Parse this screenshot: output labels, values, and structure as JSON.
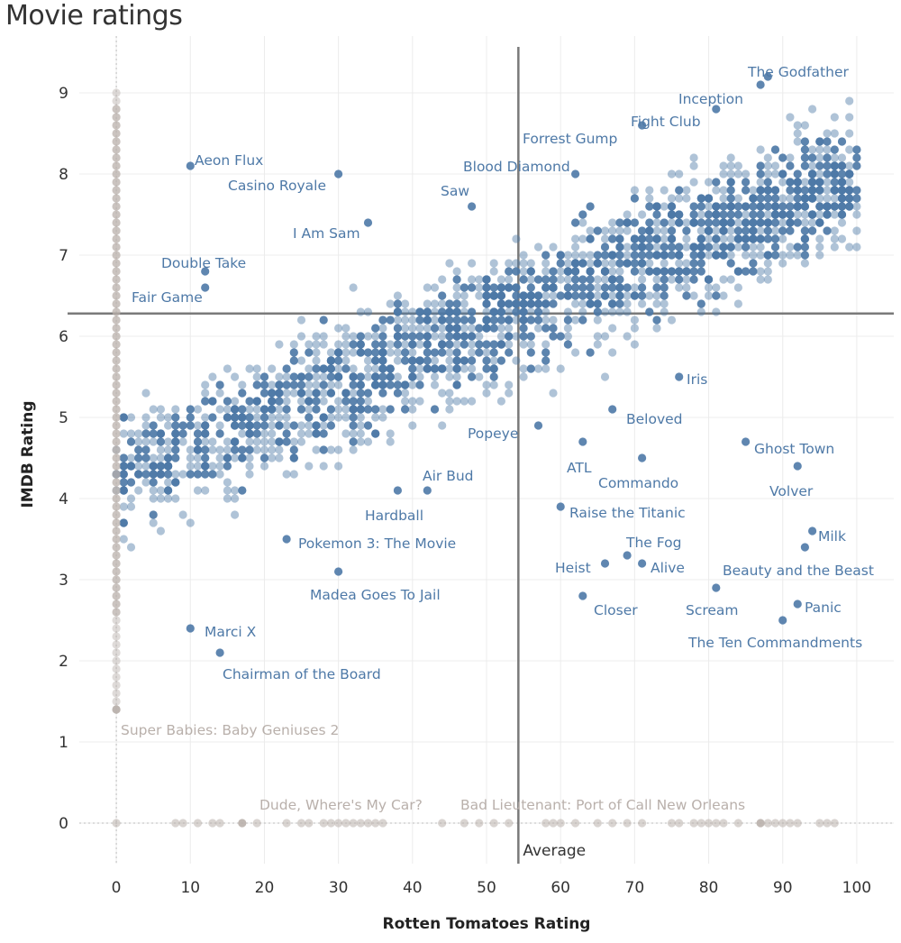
{
  "chart_data": {
    "type": "scatter",
    "title": "Movie ratings",
    "xlabel": "Rotten Tomatoes Rating",
    "ylabel": "IMDB Rating",
    "xlim": [
      -5,
      105
    ],
    "ylim": [
      -0.5,
      9.7
    ],
    "x_ticks": [
      0,
      10,
      20,
      30,
      40,
      50,
      60,
      70,
      80,
      90,
      100
    ],
    "y_ticks": [
      0,
      1,
      2,
      3,
      4,
      5,
      6,
      7,
      8,
      9
    ],
    "grid": true,
    "reference_lines": [
      {
        "axis": "x",
        "value": 54.3,
        "label": "Average"
      },
      {
        "axis": "y",
        "value": 6.28,
        "label": ""
      }
    ],
    "colors": {
      "primary": "#4e79a7",
      "missing": "#b9b0ab",
      "reference": "#7a7a7a"
    },
    "labeled_points": [
      {
        "name": "The Godfather",
        "x": 88,
        "y": 9.2
      },
      {
        "name": "Inception",
        "x": 87,
        "y": 9.1
      },
      {
        "name": "Fight Club",
        "x": 81,
        "y": 8.8
      },
      {
        "name": "Forrest Gump",
        "x": 71,
        "y": 8.6
      },
      {
        "name": "Blood Diamond",
        "x": 62,
        "y": 8.0
      },
      {
        "name": "Saw",
        "x": 48,
        "y": 7.6
      },
      {
        "name": "Aeon Flux",
        "x": 10,
        "y": 8.1
      },
      {
        "name": "Casino Royale",
        "x": 30,
        "y": 8.0
      },
      {
        "name": "I Am Sam",
        "x": 34,
        "y": 7.4
      },
      {
        "name": "Double Take",
        "x": 12,
        "y": 6.8
      },
      {
        "name": "Fair Game",
        "x": 12,
        "y": 6.6
      },
      {
        "name": "Iris",
        "x": 76,
        "y": 5.5
      },
      {
        "name": "Beloved",
        "x": 67,
        "y": 5.1
      },
      {
        "name": "Popeye",
        "x": 57,
        "y": 4.9
      },
      {
        "name": "Ghost Town",
        "x": 85,
        "y": 4.7
      },
      {
        "name": "ATL",
        "x": 63,
        "y": 4.7
      },
      {
        "name": "Commando",
        "x": 71,
        "y": 4.5
      },
      {
        "name": "Air Bud",
        "x": 42,
        "y": 4.1
      },
      {
        "name": "Volver",
        "x": 92,
        "y": 4.4
      },
      {
        "name": "Hardball",
        "x": 38,
        "y": 4.1
      },
      {
        "name": "Raise the Titanic",
        "x": 60,
        "y": 3.9
      },
      {
        "name": "Pokemon 3: The Movie",
        "x": 23,
        "y": 3.5
      },
      {
        "name": "Milk",
        "x": 94,
        "y": 3.6
      },
      {
        "name": "The Fog",
        "x": 69,
        "y": 3.3
      },
      {
        "name": "Heist",
        "x": 66,
        "y": 3.2
      },
      {
        "name": "Alive",
        "x": 71,
        "y": 3.2
      },
      {
        "name": "Beauty and the Beast",
        "x": 93,
        "y": 3.4
      },
      {
        "name": "Madea Goes To Jail",
        "x": 30,
        "y": 3.1
      },
      {
        "name": "Closer",
        "x": 63,
        "y": 2.8
      },
      {
        "name": "Scream",
        "x": 81,
        "y": 2.9
      },
      {
        "name": "Panic",
        "x": 92,
        "y": 2.7
      },
      {
        "name": "Marci X",
        "x": 10,
        "y": 2.4
      },
      {
        "name": "The Ten Commandments",
        "x": 90,
        "y": 2.5
      },
      {
        "name": "Chairman of the Board",
        "x": 14,
        "y": 2.1
      },
      {
        "name": "Super Babies: Baby Geniuses 2",
        "x": 0,
        "y": 1.4
      },
      {
        "name": "Dude, Where's My Car?",
        "x": 17,
        "y": 0
      },
      {
        "name": "Bad Lieutenant: Port of Call New Orleans",
        "x": 87,
        "y": 0
      }
    ]
  }
}
